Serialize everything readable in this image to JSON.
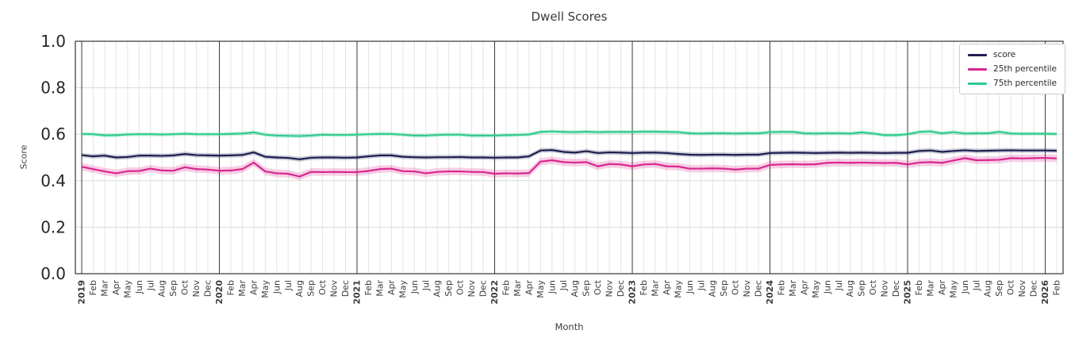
{
  "chart_data": {
    "type": "line",
    "title": "Dwell Scores",
    "xlabel": "Month",
    "ylabel": "Score",
    "ylim": [
      0.0,
      1.0
    ],
    "yticks": [
      0.0,
      0.2,
      0.4,
      0.6,
      0.8,
      1.0
    ],
    "grid": true,
    "legend_position": "upper right",
    "categories": [
      "2019",
      "Feb",
      "Mar",
      "Apr",
      "May",
      "Jun",
      "Jul",
      "Aug",
      "Sep",
      "Oct",
      "Nov",
      "Dec",
      "2020",
      "Feb",
      "Mar",
      "Apr",
      "May",
      "Jun",
      "Jul",
      "Aug",
      "Sep",
      "Oct",
      "Nov",
      "Dec",
      "2021",
      "Feb",
      "Mar",
      "Apr",
      "May",
      "Jun",
      "Jul",
      "Aug",
      "Sep",
      "Oct",
      "Nov",
      "Dec",
      "2022",
      "Feb",
      "Mar",
      "Apr",
      "May",
      "Jun",
      "Jul",
      "Aug",
      "Sep",
      "Oct",
      "Nov",
      "Dec",
      "2023",
      "Feb",
      "Mar",
      "Apr",
      "May",
      "Jun",
      "Jul",
      "Aug",
      "Sep",
      "Oct",
      "Nov",
      "Dec",
      "2024",
      "Feb",
      "Mar",
      "Apr",
      "May",
      "Jun",
      "Jul",
      "Aug",
      "Sep",
      "Oct",
      "Nov",
      "Dec",
      "2025",
      "Feb",
      "Mar",
      "Apr",
      "May",
      "Jun",
      "Jul",
      "Aug",
      "Sep",
      "Oct",
      "Nov",
      "Dec",
      "2026",
      "Feb"
    ],
    "series": [
      {
        "name": "score",
        "color": "#1e1e50",
        "band": 0.01,
        "values": [
          0.51,
          0.505,
          0.508,
          0.5,
          0.502,
          0.508,
          0.508,
          0.507,
          0.509,
          0.515,
          0.51,
          0.509,
          0.508,
          0.509,
          0.511,
          0.522,
          0.503,
          0.5,
          0.498,
          0.492,
          0.499,
          0.5,
          0.5,
          0.499,
          0.5,
          0.505,
          0.509,
          0.509,
          0.503,
          0.501,
          0.5,
          0.501,
          0.501,
          0.502,
          0.5,
          0.5,
          0.499,
          0.5,
          0.5,
          0.505,
          0.53,
          0.532,
          0.524,
          0.521,
          0.527,
          0.519,
          0.522,
          0.521,
          0.519,
          0.521,
          0.521,
          0.519,
          0.515,
          0.512,
          0.511,
          0.512,
          0.512,
          0.511,
          0.512,
          0.512,
          0.519,
          0.52,
          0.521,
          0.52,
          0.519,
          0.52,
          0.521,
          0.52,
          0.521,
          0.52,
          0.519,
          0.52,
          0.52,
          0.528,
          0.53,
          0.524,
          0.528,
          0.531,
          0.528,
          0.529,
          0.53,
          0.531,
          0.53,
          0.53,
          0.53,
          0.529
        ]
      },
      {
        "name": "25th percentile",
        "color": "#d9268e",
        "band": 0.016,
        "values": [
          0.46,
          0.45,
          0.44,
          0.432,
          0.441,
          0.442,
          0.452,
          0.444,
          0.443,
          0.458,
          0.45,
          0.448,
          0.443,
          0.444,
          0.45,
          0.478,
          0.44,
          0.432,
          0.43,
          0.418,
          0.438,
          0.437,
          0.438,
          0.437,
          0.437,
          0.442,
          0.45,
          0.452,
          0.441,
          0.44,
          0.432,
          0.438,
          0.44,
          0.44,
          0.438,
          0.437,
          0.43,
          0.432,
          0.431,
          0.433,
          0.482,
          0.488,
          0.48,
          0.478,
          0.48,
          0.462,
          0.472,
          0.47,
          0.462,
          0.47,
          0.472,
          0.462,
          0.461,
          0.452,
          0.452,
          0.453,
          0.452,
          0.448,
          0.452,
          0.452,
          0.468,
          0.47,
          0.471,
          0.47,
          0.471,
          0.477,
          0.478,
          0.477,
          0.478,
          0.477,
          0.476,
          0.477,
          0.47,
          0.478,
          0.48,
          0.477,
          0.487,
          0.497,
          0.488,
          0.489,
          0.49,
          0.497,
          0.496,
          0.497,
          0.498,
          0.496
        ]
      },
      {
        "name": "75th percentile",
        "color": "#2fcb8f",
        "band": 0.009,
        "values": [
          0.601,
          0.6,
          0.595,
          0.596,
          0.599,
          0.6,
          0.6,
          0.599,
          0.6,
          0.602,
          0.6,
          0.6,
          0.6,
          0.601,
          0.603,
          0.608,
          0.598,
          0.594,
          0.593,
          0.592,
          0.594,
          0.598,
          0.597,
          0.597,
          0.598,
          0.6,
          0.601,
          0.601,
          0.598,
          0.594,
          0.594,
          0.597,
          0.598,
          0.598,
          0.594,
          0.594,
          0.594,
          0.596,
          0.597,
          0.599,
          0.61,
          0.612,
          0.61,
          0.609,
          0.611,
          0.609,
          0.61,
          0.61,
          0.61,
          0.611,
          0.611,
          0.61,
          0.609,
          0.604,
          0.603,
          0.604,
          0.604,
          0.603,
          0.604,
          0.604,
          0.609,
          0.61,
          0.61,
          0.604,
          0.603,
          0.604,
          0.604,
          0.603,
          0.608,
          0.603,
          0.596,
          0.596,
          0.6,
          0.61,
          0.612,
          0.604,
          0.609,
          0.603,
          0.604,
          0.604,
          0.61,
          0.603,
          0.602,
          0.602,
          0.602,
          0.601
        ]
      }
    ]
  }
}
